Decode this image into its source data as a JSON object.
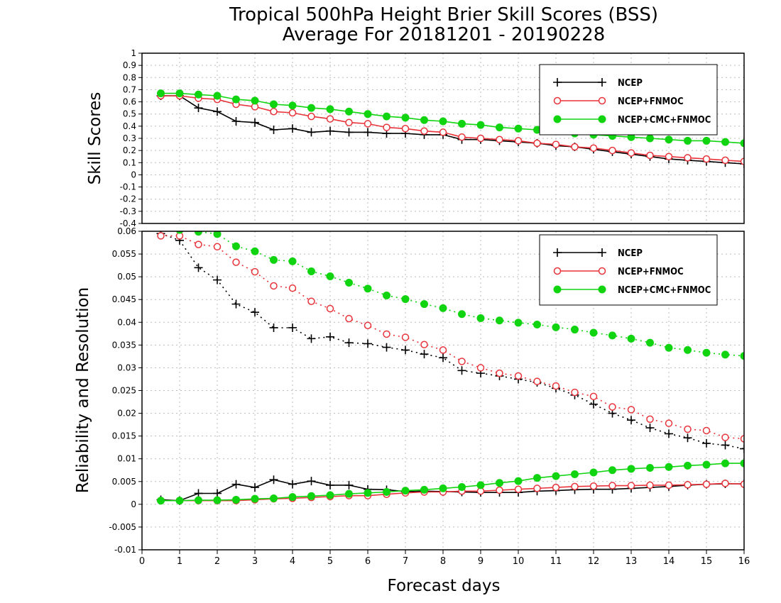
{
  "figure": {
    "title_line1": "Tropical 500hPa Height Brier Skill Scores (BSS)",
    "title_line2": "Average For 20181201 - 20190228",
    "xlabel": "Forecast days",
    "xticks": [
      "0",
      "1",
      "2",
      "3",
      "4",
      "5",
      "6",
      "7",
      "8",
      "9",
      "10",
      "11",
      "12",
      "13",
      "14",
      "15",
      "16"
    ]
  },
  "colors": {
    "NCEP": "#000000",
    "NCEP+FNMOC": "#e8333a",
    "NCEP+CMC+FNMOC": "#11d411",
    "grid": "#bbbbbb"
  },
  "chart_data": [
    {
      "type": "line",
      "panel": "top",
      "ylabel": "Skill Scores",
      "ylim": [
        -0.4,
        1
      ],
      "yticks": [
        "1",
        "0.9",
        "0.8",
        "0.7",
        "0.6",
        "0.5",
        "0.4",
        "0.3",
        "0.2",
        "0.1",
        "0",
        "-0.1",
        "-0.2",
        "-0.3",
        "-0.4"
      ],
      "xlim": [
        0,
        16
      ],
      "grid": true,
      "legend": "top-right",
      "x": [
        0.5,
        1,
        1.5,
        2,
        2.5,
        3,
        3.5,
        4,
        4.5,
        5,
        5.5,
        6,
        6.5,
        7,
        7.5,
        8,
        8.5,
        9,
        9.5,
        10,
        10.5,
        11,
        11.5,
        12,
        12.5,
        13,
        13.5,
        14,
        14.5,
        15,
        15.5,
        16
      ],
      "series": [
        {
          "name": "NCEP",
          "marker": "plus",
          "style": "solid",
          "values": [
            0.65,
            0.65,
            0.55,
            0.52,
            0.44,
            0.43,
            0.37,
            0.38,
            0.35,
            0.36,
            0.35,
            0.35,
            0.34,
            0.34,
            0.33,
            0.33,
            0.29,
            0.29,
            0.28,
            0.27,
            0.26,
            0.24,
            0.23,
            0.21,
            0.19,
            0.17,
            0.15,
            0.13,
            0.12,
            0.11,
            0.1,
            0.09
          ]
        },
        {
          "name": "NCEP+FNMOC",
          "marker": "open-circle",
          "style": "solid",
          "values": [
            0.65,
            0.65,
            0.63,
            0.62,
            0.58,
            0.56,
            0.52,
            0.51,
            0.48,
            0.46,
            0.43,
            0.42,
            0.39,
            0.38,
            0.36,
            0.35,
            0.31,
            0.3,
            0.29,
            0.28,
            0.26,
            0.25,
            0.23,
            0.22,
            0.2,
            0.18,
            0.16,
            0.15,
            0.14,
            0.13,
            0.12,
            0.11
          ]
        },
        {
          "name": "NCEP+CMC+FNMOC",
          "marker": "filled-circle",
          "style": "solid",
          "values": [
            0.67,
            0.67,
            0.66,
            0.65,
            0.62,
            0.61,
            0.58,
            0.57,
            0.55,
            0.54,
            0.52,
            0.5,
            0.48,
            0.47,
            0.45,
            0.44,
            0.42,
            0.41,
            0.39,
            0.38,
            0.37,
            0.36,
            0.34,
            0.33,
            0.32,
            0.31,
            0.3,
            0.29,
            0.28,
            0.28,
            0.27,
            0.26
          ]
        }
      ]
    },
    {
      "type": "line",
      "panel": "bottom",
      "ylabel": "Reliability and Resolution",
      "ylim": [
        -0.01,
        0.06
      ],
      "yticks": [
        "0.06",
        "0.055",
        "0.05",
        "0.045",
        "0.04",
        "0.035",
        "0.03",
        "0.025",
        "0.02",
        "0.015",
        "0.01",
        "0.005",
        "0",
        "-0.005",
        "-0.01"
      ],
      "xlim": [
        0,
        16
      ],
      "grid": true,
      "legend": "top-right",
      "x": [
        0.5,
        1,
        1.5,
        2,
        2.5,
        3,
        3.5,
        4,
        4.5,
        5,
        5.5,
        6,
        6.5,
        7,
        7.5,
        8,
        8.5,
        9,
        9.5,
        10,
        10.5,
        11,
        11.5,
        12,
        12.5,
        13,
        13.5,
        14,
        14.5,
        15,
        15.5,
        16
      ],
      "series": [
        {
          "name": "NCEP",
          "component": "resolution",
          "marker": "plus",
          "style": "dotted",
          "values": [
            0.0595,
            0.058,
            0.052,
            0.0493,
            0.044,
            0.0422,
            0.0388,
            0.0388,
            0.0364,
            0.0368,
            0.0355,
            0.0353,
            0.0345,
            0.0339,
            0.033,
            0.0322,
            0.0294,
            0.0288,
            0.0282,
            0.0275,
            0.0268,
            0.0255,
            0.024,
            0.022,
            0.02,
            0.0185,
            0.0168,
            0.0155,
            0.0146,
            0.0134,
            0.013,
            0.0122
          ]
        },
        {
          "name": "NCEP+FNMOC",
          "component": "resolution",
          "marker": "open-circle",
          "style": "dotted",
          "values": [
            0.059,
            0.059,
            0.0571,
            0.0566,
            0.0532,
            0.0511,
            0.048,
            0.0475,
            0.0446,
            0.043,
            0.0408,
            0.0393,
            0.0374,
            0.0367,
            0.0351,
            0.0339,
            0.0314,
            0.03,
            0.0288,
            0.0282,
            0.027,
            0.026,
            0.0246,
            0.0237,
            0.0214,
            0.0208,
            0.0187,
            0.0178,
            0.0165,
            0.0162,
            0.0147,
            0.0144
          ]
        },
        {
          "name": "NCEP+CMC+FNMOC",
          "component": "resolution",
          "marker": "filled-circle",
          "style": "dotted",
          "values": [
            0.061,
            0.0603,
            0.0599,
            0.0594,
            0.0567,
            0.0556,
            0.0537,
            0.0534,
            0.0512,
            0.0501,
            0.0487,
            0.0474,
            0.0459,
            0.0451,
            0.044,
            0.0431,
            0.0418,
            0.0409,
            0.0404,
            0.0399,
            0.0395,
            0.0389,
            0.0384,
            0.0377,
            0.0371,
            0.0364,
            0.0355,
            0.0344,
            0.0339,
            0.0333,
            0.0329,
            0.0326
          ]
        },
        {
          "name": "NCEP",
          "component": "reliability",
          "marker": "plus",
          "style": "solid",
          "values": [
            0.001,
            0.0008,
            0.0024,
            0.0024,
            0.0044,
            0.0037,
            0.0054,
            0.0044,
            0.0051,
            0.0042,
            0.0042,
            0.0033,
            0.0032,
            0.0028,
            0.0029,
            0.0028,
            0.0027,
            0.0026,
            0.0026,
            0.0026,
            0.0029,
            0.003,
            0.0032,
            0.0033,
            0.0033,
            0.0035,
            0.0037,
            0.0039,
            0.0042,
            0.0044,
            0.0045,
            0.0045
          ]
        },
        {
          "name": "NCEP+FNMOC",
          "component": "reliability",
          "marker": "open-circle",
          "style": "solid",
          "values": [
            0.0008,
            0.0008,
            0.0008,
            0.0008,
            0.0008,
            0.001,
            0.0012,
            0.0013,
            0.0015,
            0.0017,
            0.0019,
            0.0019,
            0.0022,
            0.0025,
            0.0027,
            0.0027,
            0.0029,
            0.0029,
            0.0031,
            0.0033,
            0.0035,
            0.0037,
            0.0039,
            0.004,
            0.0041,
            0.0041,
            0.0042,
            0.0042,
            0.0043,
            0.0044,
            0.0046,
            0.0044
          ]
        },
        {
          "name": "NCEP+CMC+FNMOC",
          "component": "reliability",
          "marker": "filled-circle",
          "style": "solid",
          "values": [
            0.0008,
            0.0008,
            0.0009,
            0.0009,
            0.001,
            0.0012,
            0.0013,
            0.0016,
            0.0018,
            0.002,
            0.0023,
            0.0025,
            0.0027,
            0.003,
            0.0032,
            0.0035,
            0.0038,
            0.0042,
            0.0047,
            0.0051,
            0.0058,
            0.0062,
            0.0066,
            0.007,
            0.0075,
            0.0078,
            0.008,
            0.0082,
            0.0085,
            0.0087,
            0.009,
            0.009
          ]
        }
      ]
    }
  ]
}
